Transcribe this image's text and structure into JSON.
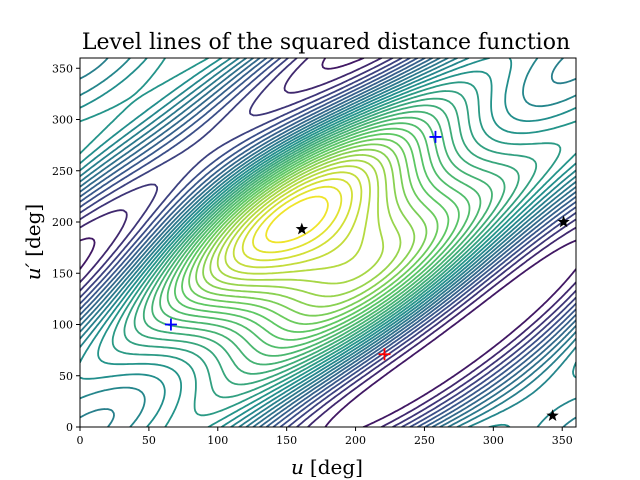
{
  "chart_data": {
    "type": "contour",
    "title": "Level lines of the squared distance function",
    "xlabel_var": "u",
    "xlabel_unit": "[deg]",
    "ylabel_var": "u′",
    "ylabel_unit": "[deg]",
    "xlim": [
      0,
      360
    ],
    "ylim": [
      0,
      360
    ],
    "xticks": [
      0,
      50,
      100,
      150,
      200,
      250,
      300,
      350
    ],
    "yticks": [
      0,
      50,
      100,
      150,
      200,
      250,
      300,
      350
    ],
    "colormap": [
      "#440154",
      "#3b528b",
      "#21918c",
      "#5ec962",
      "#fde725"
    ],
    "markers": [
      {
        "x": 66,
        "y": 100,
        "symbol": "plus",
        "color": "#0000ff"
      },
      {
        "x": 258,
        "y": 283,
        "symbol": "plus",
        "color": "#0000ff"
      },
      {
        "x": 221,
        "y": 71,
        "symbol": "plus",
        "color": "#ff0000"
      },
      {
        "x": 161,
        "y": 193,
        "symbol": "star",
        "color": "#000000"
      },
      {
        "x": 351,
        "y": 200,
        "symbol": "star",
        "color": "#000000"
      },
      {
        "x": 343,
        "y": 11,
        "symbol": "star",
        "color": "#000000"
      }
    ]
  }
}
